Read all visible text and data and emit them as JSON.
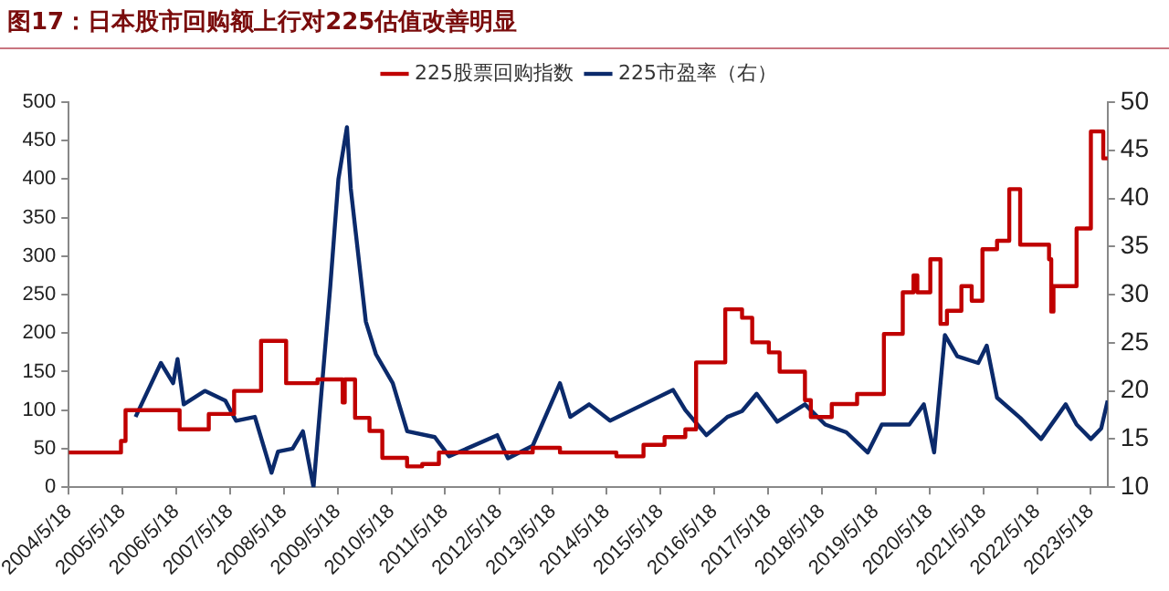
{
  "chart_data": {
    "type": "step",
    "title": "图17：日本股市回购额上行对225估值改善明显",
    "xlim": [
      "2004-05-18",
      "2023-09-09"
    ],
    "xticks": [
      {
        "value": "2004-05-18",
        "label": "2004/5/18"
      },
      {
        "value": "2005-05-18",
        "label": "2005/5/18"
      },
      {
        "value": "2006-05-18",
        "label": "2006/5/18"
      },
      {
        "value": "2007-05-18",
        "label": "2007/5/18"
      },
      {
        "value": "2008-05-18",
        "label": "2008/5/18"
      },
      {
        "value": "2009-05-18",
        "label": "2009/5/18"
      },
      {
        "value": "2010-05-18",
        "label": "2010/5/18"
      },
      {
        "value": "2011-05-18",
        "label": "2011/5/18"
      },
      {
        "value": "2012-05-18",
        "label": "2012/5/18"
      },
      {
        "value": "2013-05-18",
        "label": "2013/5/18"
      },
      {
        "value": "2014-05-18",
        "label": "2014/5/18"
      },
      {
        "value": "2015-05-18",
        "label": "2015/5/18"
      },
      {
        "value": "2016-05-18",
        "label": "2016/5/18"
      },
      {
        "value": "2017-05-18",
        "label": "2017/5/18"
      },
      {
        "value": "2018-05-18",
        "label": "2018/5/18"
      },
      {
        "value": "2019-05-18",
        "label": "2019/5/18"
      },
      {
        "value": "2020-05-18",
        "label": "2020/5/18"
      },
      {
        "value": "2021-05-18",
        "label": "2021/5/18"
      },
      {
        "value": "2022-05-18",
        "label": "2022/5/18"
      },
      {
        "value": "2023-05-18",
        "label": "2023/5/18"
      }
    ],
    "ylim": [
      0,
      500
    ],
    "yticks": [
      0,
      50,
      100,
      150,
      200,
      250,
      300,
      350,
      400,
      450,
      500
    ],
    "y2lim": [
      10,
      50
    ],
    "y2ticks": [
      10,
      15,
      20,
      25,
      30,
      35,
      40,
      45,
      50
    ],
    "grid": false,
    "legend": "top",
    "marker": "none",
    "series": [
      {
        "name": "225股票回购指数",
        "color": "#c00000",
        "x": [
          "2004-05-18",
          "2005-02-15",
          "2005-05-08",
          "2005-06-08",
          "2006-05-25",
          "2006-06-10",
          "2006-12-25",
          "2007-06-15",
          "2007-12-15",
          "2008-06-02",
          "2009-01-01",
          "2009-06-06",
          "2009-06-21",
          "2009-07-05",
          "2009-09-13",
          "2009-12-20",
          "2010-03-17",
          "2010-09-01",
          "2010-12-13",
          "2011-04-05",
          "2013-01-01",
          "2013-07-05",
          "2014-07-23",
          "2015-01-23",
          "2015-06-15",
          "2015-11-03",
          "2016-01-15",
          "2016-07-31",
          "2016-11-22",
          "2017-01-30",
          "2017-05-23",
          "2017-08-04",
          "2018-01-23",
          "2018-03-04",
          "2018-07-24",
          "2019-01-12",
          "2019-07-13",
          "2019-11-18",
          "2020-01-30",
          "2020-02-25",
          "2020-05-23",
          "2020-07-31",
          "2020-09-13",
          "2020-12-20",
          "2021-02-28",
          "2021-05-12",
          "2021-08-19",
          "2021-11-10",
          "2022-01-23",
          "2022-08-07",
          "2022-08-22",
          "2022-09-06",
          "2023-02-10",
          "2023-05-18",
          "2023-07-27",
          "2023-08-10",
          "2023-09-09"
        ],
        "values": [
          45,
          45,
          60,
          100,
          100,
          75,
          95,
          125,
          190,
          135,
          140,
          140,
          110,
          140,
          90,
          73,
          38,
          27,
          30,
          45,
          51,
          45,
          40,
          55,
          65,
          75,
          162,
          231,
          220,
          188,
          175,
          150,
          113,
          91,
          108,
          121,
          199,
          253,
          275,
          253,
          296,
          212,
          229,
          261,
          242,
          309,
          320,
          387,
          315,
          296,
          228,
          261,
          336,
          462,
          462,
          427,
          427
        ]
      },
      {
        "name": "225市盈率（右）",
        "type": "line",
        "axis": "y2",
        "color": "#0b2a6b",
        "x": [
          "2005-08-15",
          "2006-02-03",
          "2006-04-27",
          "2006-05-27",
          "2006-07-08",
          "2006-11-28",
          "2007-04-16",
          "2007-06-28",
          "2007-11-03",
          "2008-02-24",
          "2008-04-08",
          "2008-07-16",
          "2008-09-24",
          "2008-12-05",
          "2009-03-29",
          "2009-05-23",
          "2009-07-20",
          "2009-08-15",
          "2009-11-25",
          "2010-02-02",
          "2010-05-27",
          "2010-09-02",
          "2011-03-08",
          "2011-06-14",
          "2012-05-05",
          "2012-07-17",
          "2013-01-01",
          "2013-07-05",
          "2013-09-13",
          "2014-01-19",
          "2014-06-10",
          "2015-01-23",
          "2015-08-12",
          "2015-11-03",
          "2016-03-25",
          "2016-08-15",
          "2016-11-22",
          "2017-03-01",
          "2017-07-19",
          "2018-01-23",
          "2018-06-10",
          "2018-10-31",
          "2019-03-25",
          "2019-06-29",
          "2020-01-01",
          "2020-04-09",
          "2020-06-18",
          "2020-08-30",
          "2020-11-22",
          "2021-04-13",
          "2021-06-10",
          "2021-08-19",
          "2022-01-23",
          "2022-06-14",
          "2022-11-28",
          "2023-02-10",
          "2023-05-18",
          "2023-07-27",
          "2023-09-09"
        ],
        "values": [
          17.3,
          22.9,
          20.8,
          23.3,
          18.6,
          20,
          19,
          16.9,
          17.3,
          11.5,
          13.7,
          14,
          15.8,
          10,
          30.9,
          42,
          47.4,
          41,
          27.2,
          23.8,
          20.8,
          15.8,
          15.2,
          13.2,
          15.4,
          13,
          14.3,
          20.8,
          17.3,
          18.6,
          16.9,
          18.6,
          20.1,
          18,
          15.4,
          17.3,
          17.9,
          19.7,
          16.8,
          18.6,
          16.5,
          15.7,
          13.6,
          16.5,
          16.5,
          18.6,
          13.6,
          25.8,
          23.6,
          22.9,
          24.7,
          19.3,
          17.2,
          15,
          18.6,
          16.5,
          15,
          16.1,
          19
        ]
      }
    ]
  }
}
